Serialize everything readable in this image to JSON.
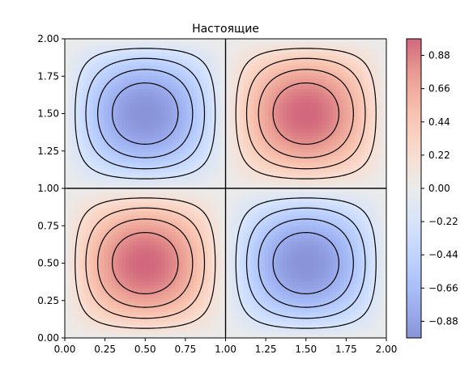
{
  "chart_data": {
    "type": "contour",
    "title": "Настоящие",
    "xlabel": "",
    "ylabel": "",
    "function": "sin(pi*x)*sin(pi*y)",
    "xlim": [
      0.0,
      2.0
    ],
    "ylim": [
      0.0,
      2.0
    ],
    "grid": false,
    "x_ticks": [
      "0.00",
      "0.25",
      "0.50",
      "0.75",
      "1.00",
      "1.25",
      "1.50",
      "1.75",
      "2.00"
    ],
    "y_ticks": [
      "0.00",
      "0.25",
      "0.50",
      "0.75",
      "1.00",
      "1.25",
      "1.50",
      "1.75",
      "2.00"
    ],
    "colormap": "coolwarm",
    "fill_alpha": 0.6,
    "colorbar": {
      "placement": "right",
      "range": [
        -0.99,
        0.99
      ],
      "ticks": [
        "0.88",
        "0.66",
        "0.44",
        "0.22",
        "0.00",
        "−0.22",
        "−0.44",
        "−0.66",
        "−0.88"
      ],
      "tick_values": [
        0.88,
        0.66,
        0.44,
        0.22,
        0.0,
        -0.22,
        -0.44,
        -0.66,
        -0.88
      ]
    },
    "contour_levels": [
      -0.8,
      -0.6,
      -0.4,
      -0.2,
      0.0,
      0.2,
      0.4,
      0.6,
      0.8
    ],
    "contour_line_color": "#000000",
    "negative_linestyle": "dashed",
    "extrema": [
      {
        "x": 0.5,
        "y": 0.5,
        "value": 1.0
      },
      {
        "x": 1.5,
        "y": 1.5,
        "value": 1.0
      },
      {
        "x": 0.5,
        "y": 1.5,
        "value": -1.0
      },
      {
        "x": 1.5,
        "y": 0.5,
        "value": -1.0
      }
    ]
  }
}
